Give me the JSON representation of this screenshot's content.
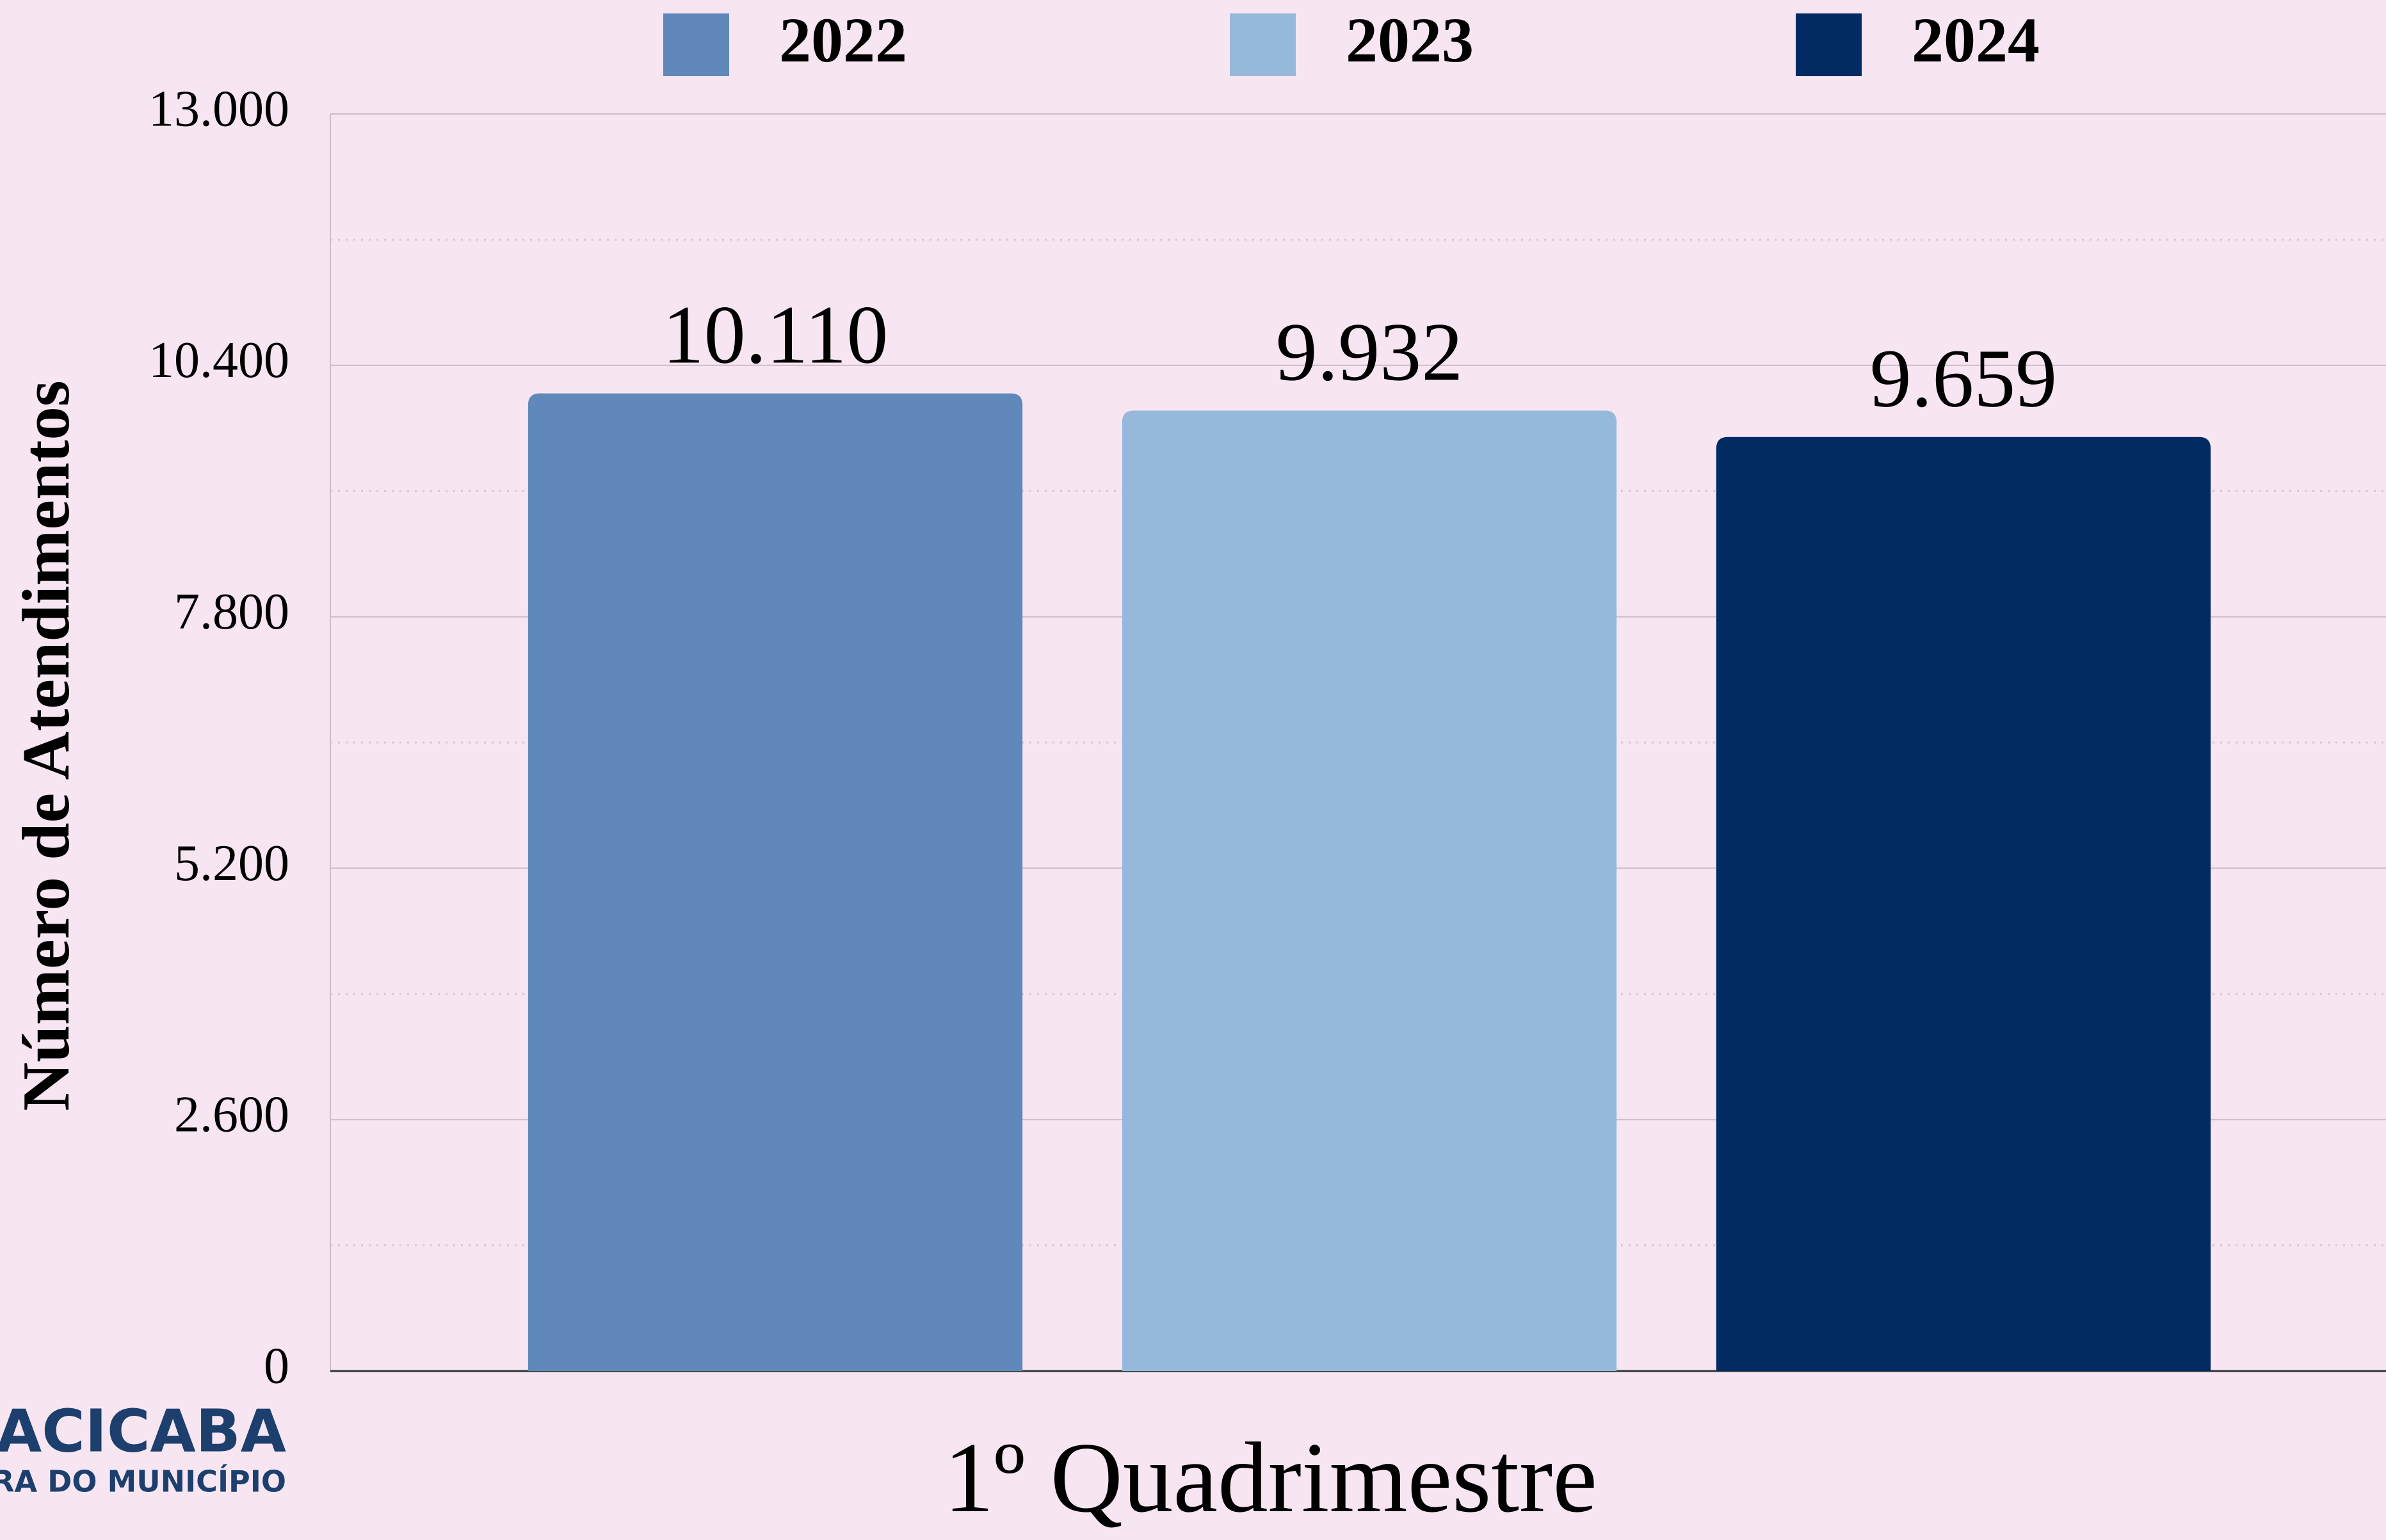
{
  "chart_data": {
    "type": "bar",
    "y_label": "Número de Atendimentos",
    "categories": [
      "1º Quadrimestre"
    ],
    "series": [
      {
        "name": "2022",
        "color": "#6088ba",
        "values": [
          10110
        ],
        "value_labels": [
          "10.110"
        ]
      },
      {
        "name": "2023",
        "color": "#96b8da",
        "values": [
          9932
        ],
        "value_labels": [
          "9.932"
        ]
      },
      {
        "name": "2024",
        "color": "#012b62",
        "values": [
          9659
        ],
        "value_labels": [
          "9.659"
        ]
      }
    ],
    "ylim": [
      0,
      13000
    ],
    "yticks": [
      0,
      {
        "value": 2600,
        "label": "2.600"
      },
      {
        "value": 5200,
        "label": "5.200"
      },
      {
        "value": 7800,
        "label": "7.800"
      },
      {
        "value": 10400,
        "label": "10.400"
      },
      {
        "value": 13000,
        "label": "13.000"
      }
    ],
    "grid": true,
    "legend": "top",
    "logo": [
      "RACICABA",
      "TURA DO MUNICÍPIO"
    ]
  }
}
